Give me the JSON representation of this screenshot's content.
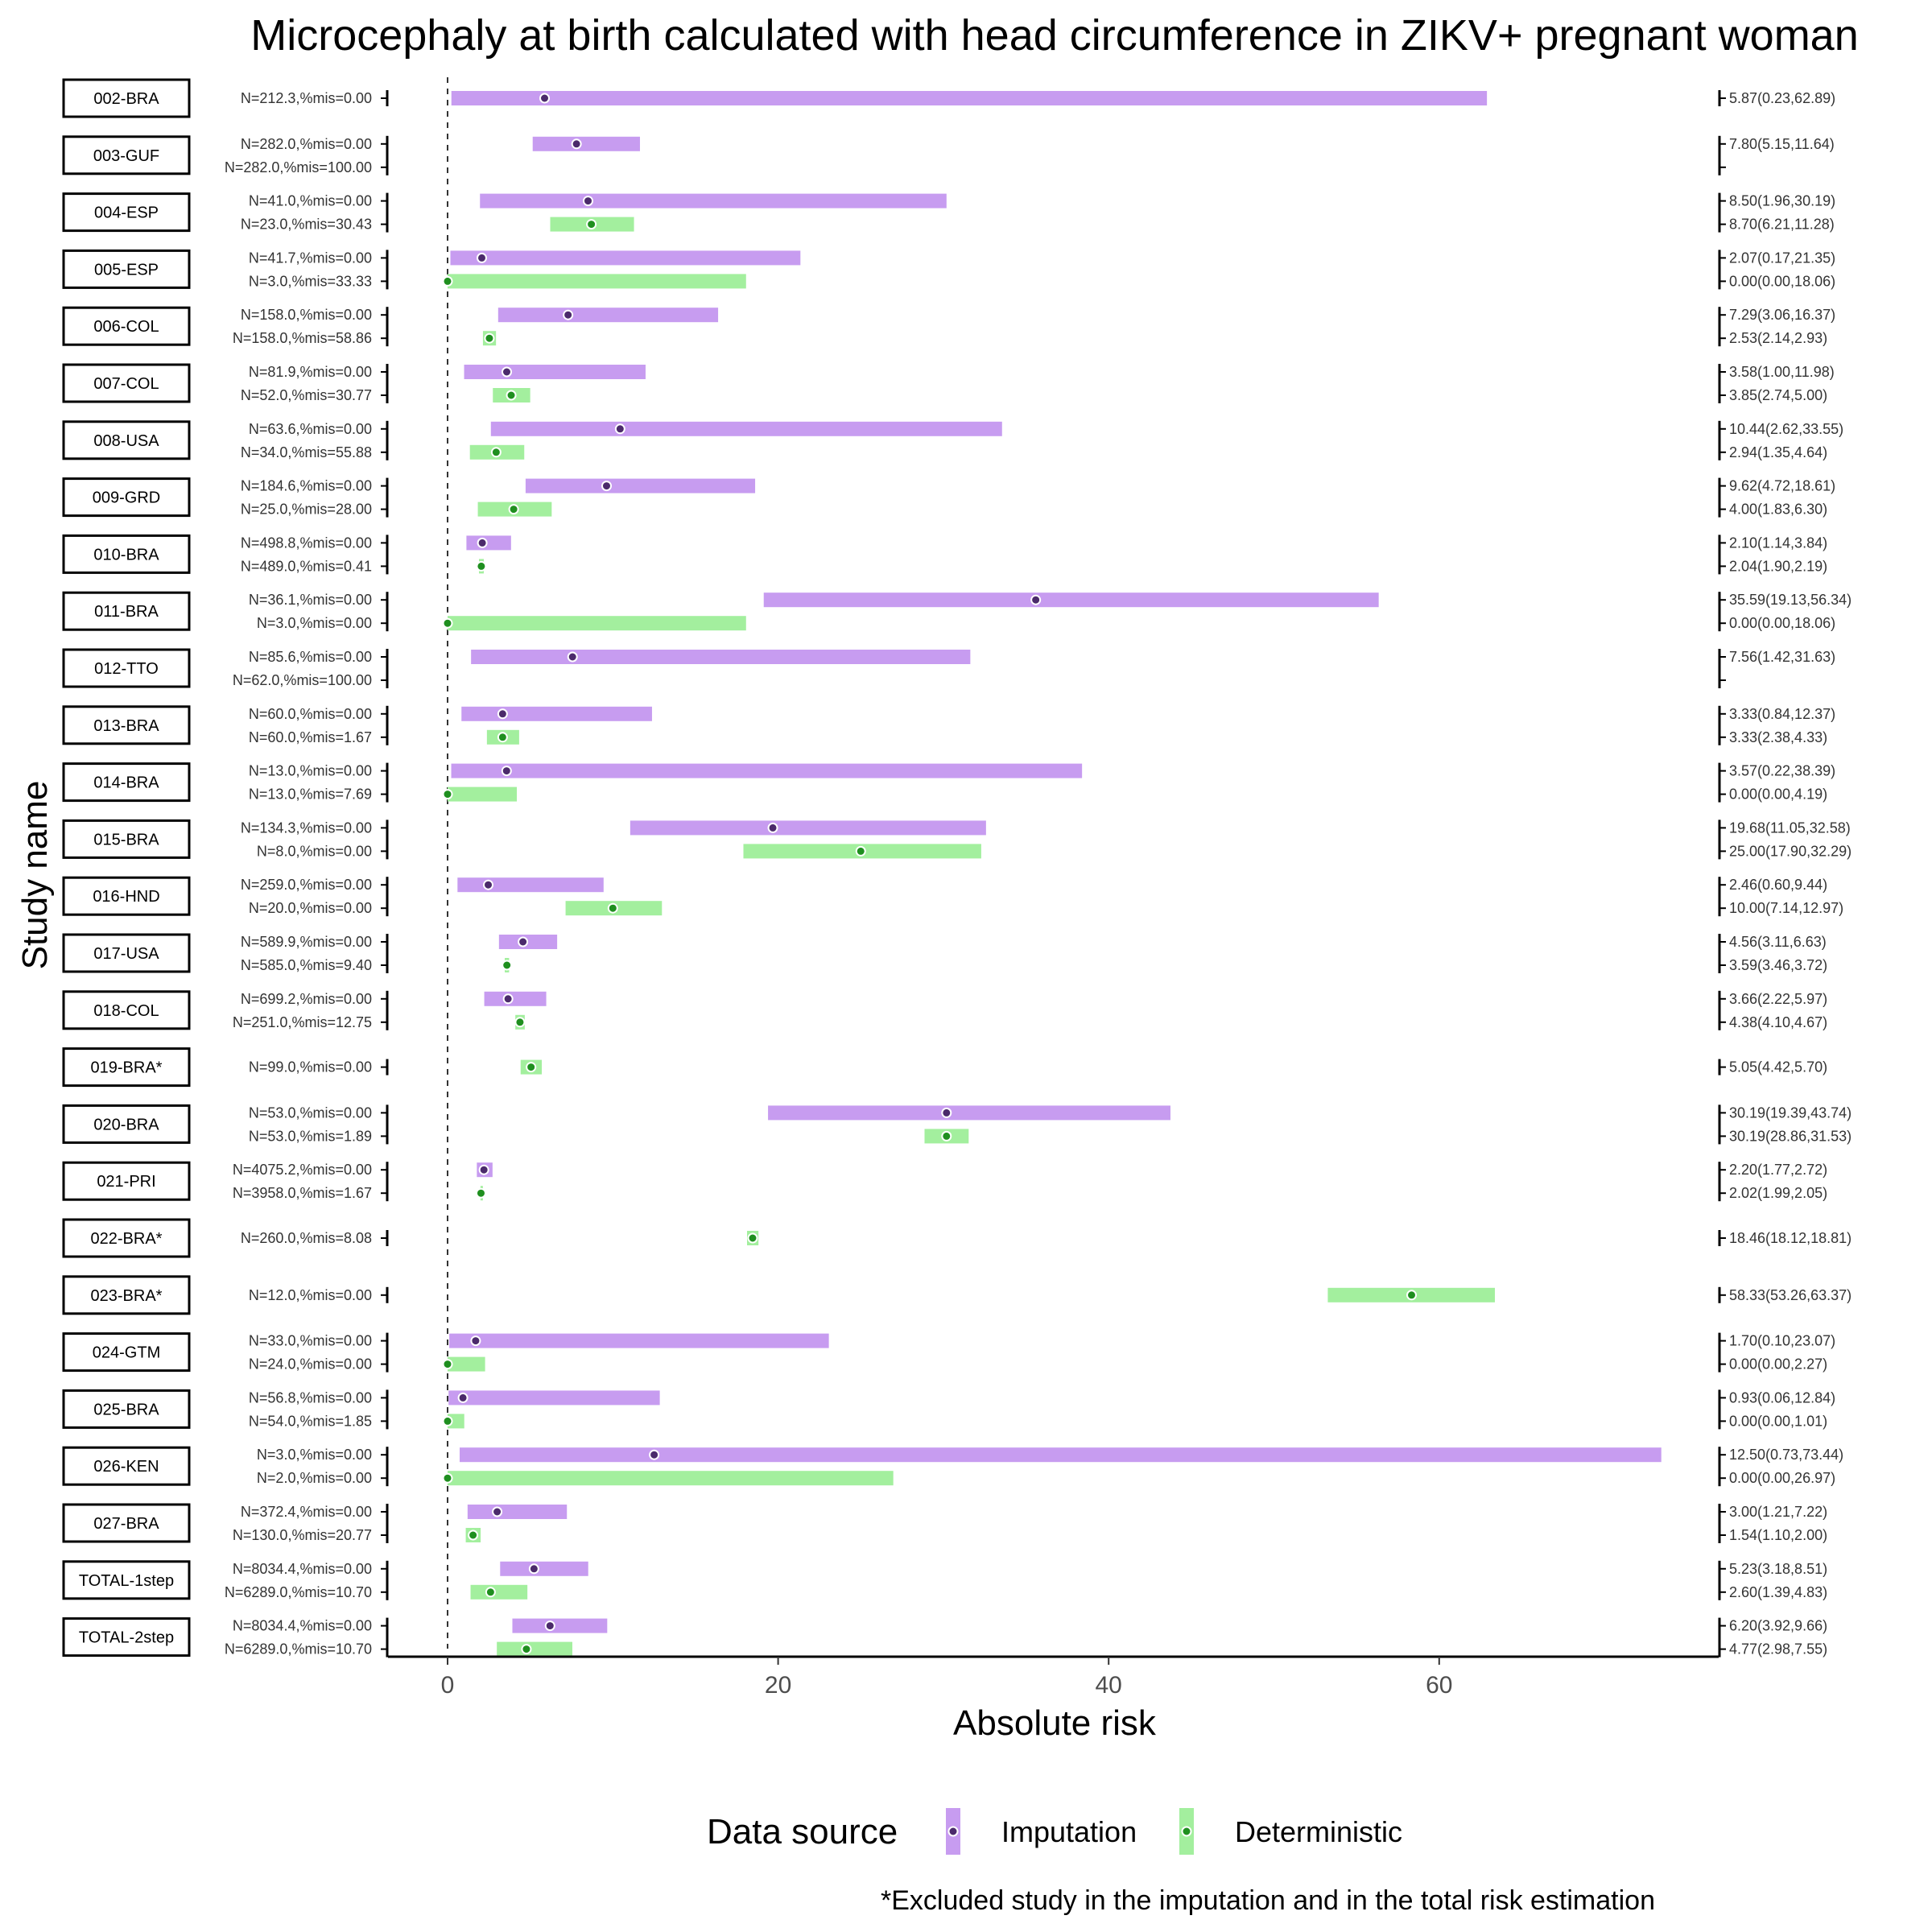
{
  "chart_data": {
    "type": "forest",
    "title": "Microcephaly at birth calculated with head circumference in ZIKV+ pregnant woman",
    "xlabel": "Absolute risk",
    "ylabel": "Study name",
    "xlim": [
      -3.5,
      77
    ],
    "x_ticks": [
      0,
      20,
      40,
      60
    ],
    "reference_line": 0,
    "legend": {
      "title": "Data source",
      "position": "bottom",
      "items": [
        {
          "name": "Imputation",
          "color": "#c79cf0",
          "dot": "#4b2a6b"
        },
        {
          "name": "Deterministic",
          "color": "#a3ef9e",
          "dot": "#1f8f1f"
        }
      ]
    },
    "footnote": "*Excluded study in the imputation and in the total risk estimation",
    "studies": [
      {
        "name": "002-BRA",
        "rows": [
          {
            "source": "Imputation",
            "n_label": "N=212.3,%mis=0.00",
            "est": 5.87,
            "lo": 0.23,
            "hi": 62.89,
            "ci_label": "5.87(0.23,62.89)"
          }
        ]
      },
      {
        "name": "003-GUF",
        "rows": [
          {
            "source": "Imputation",
            "n_label": "N=282.0,%mis=0.00",
            "est": 7.8,
            "lo": 5.15,
            "hi": 11.64,
            "ci_label": "7.80(5.15,11.64)"
          },
          {
            "source": "Deterministic",
            "n_label": "N=282.0,%mis=100.00",
            "est": null,
            "lo": null,
            "hi": null,
            "ci_label": ""
          }
        ]
      },
      {
        "name": "004-ESP",
        "rows": [
          {
            "source": "Imputation",
            "n_label": "N=41.0,%mis=0.00",
            "est": 8.5,
            "lo": 1.96,
            "hi": 30.19,
            "ci_label": "8.50(1.96,30.19)"
          },
          {
            "source": "Deterministic",
            "n_label": "N=23.0,%mis=30.43",
            "est": 8.7,
            "lo": 6.21,
            "hi": 11.28,
            "ci_label": "8.70(6.21,11.28)"
          }
        ]
      },
      {
        "name": "005-ESP",
        "rows": [
          {
            "source": "Imputation",
            "n_label": "N=41.7,%mis=0.00",
            "est": 2.07,
            "lo": 0.17,
            "hi": 21.35,
            "ci_label": "2.07(0.17,21.35)"
          },
          {
            "source": "Deterministic",
            "n_label": "N=3.0,%mis=33.33",
            "est": 0.0,
            "lo": 0.0,
            "hi": 18.06,
            "ci_label": "0.00(0.00,18.06)"
          }
        ]
      },
      {
        "name": "006-COL",
        "rows": [
          {
            "source": "Imputation",
            "n_label": "N=158.0,%mis=0.00",
            "est": 7.29,
            "lo": 3.06,
            "hi": 16.37,
            "ci_label": "7.29(3.06,16.37)"
          },
          {
            "source": "Deterministic",
            "n_label": "N=158.0,%mis=58.86",
            "est": 2.53,
            "lo": 2.14,
            "hi": 2.93,
            "ci_label": "2.53(2.14,2.93)"
          }
        ]
      },
      {
        "name": "007-COL",
        "rows": [
          {
            "source": "Imputation",
            "n_label": "N=81.9,%mis=0.00",
            "est": 3.58,
            "lo": 1.0,
            "hi": 11.98,
            "ci_label": "3.58(1.00,11.98)"
          },
          {
            "source": "Deterministic",
            "n_label": "N=52.0,%mis=30.77",
            "est": 3.85,
            "lo": 2.74,
            "hi": 5.0,
            "ci_label": "3.85(2.74,5.00)"
          }
        ]
      },
      {
        "name": "008-USA",
        "rows": [
          {
            "source": "Imputation",
            "n_label": "N=63.6,%mis=0.00",
            "est": 10.44,
            "lo": 2.62,
            "hi": 33.55,
            "ci_label": "10.44(2.62,33.55)"
          },
          {
            "source": "Deterministic",
            "n_label": "N=34.0,%mis=55.88",
            "est": 2.94,
            "lo": 1.35,
            "hi": 4.64,
            "ci_label": "2.94(1.35,4.64)"
          }
        ]
      },
      {
        "name": "009-GRD",
        "rows": [
          {
            "source": "Imputation",
            "n_label": "N=184.6,%mis=0.00",
            "est": 9.62,
            "lo": 4.72,
            "hi": 18.61,
            "ci_label": "9.62(4.72,18.61)"
          },
          {
            "source": "Deterministic",
            "n_label": "N=25.0,%mis=28.00",
            "est": 4.0,
            "lo": 1.83,
            "hi": 6.3,
            "ci_label": "4.00(1.83,6.30)"
          }
        ]
      },
      {
        "name": "010-BRA",
        "rows": [
          {
            "source": "Imputation",
            "n_label": "N=498.8,%mis=0.00",
            "est": 2.1,
            "lo": 1.14,
            "hi": 3.84,
            "ci_label": "2.10(1.14,3.84)"
          },
          {
            "source": "Deterministic",
            "n_label": "N=489.0,%mis=0.41",
            "est": 2.04,
            "lo": 1.9,
            "hi": 2.19,
            "ci_label": "2.04(1.90,2.19)"
          }
        ]
      },
      {
        "name": "011-BRA",
        "rows": [
          {
            "source": "Imputation",
            "n_label": "N=36.1,%mis=0.00",
            "est": 35.59,
            "lo": 19.13,
            "hi": 56.34,
            "ci_label": "35.59(19.13,56.34)"
          },
          {
            "source": "Deterministic",
            "n_label": "N=3.0,%mis=0.00",
            "est": 0.0,
            "lo": 0.0,
            "hi": 18.06,
            "ci_label": "0.00(0.00,18.06)"
          }
        ]
      },
      {
        "name": "012-TTO",
        "rows": [
          {
            "source": "Imputation",
            "n_label": "N=85.6,%mis=0.00",
            "est": 7.56,
            "lo": 1.42,
            "hi": 31.63,
            "ci_label": "7.56(1.42,31.63)"
          },
          {
            "source": "Deterministic",
            "n_label": "N=62.0,%mis=100.00",
            "est": null,
            "lo": null,
            "hi": null,
            "ci_label": ""
          }
        ]
      },
      {
        "name": "013-BRA",
        "rows": [
          {
            "source": "Imputation",
            "n_label": "N=60.0,%mis=0.00",
            "est": 3.33,
            "lo": 0.84,
            "hi": 12.37,
            "ci_label": "3.33(0.84,12.37)"
          },
          {
            "source": "Deterministic",
            "n_label": "N=60.0,%mis=1.67",
            "est": 3.33,
            "lo": 2.38,
            "hi": 4.33,
            "ci_label": "3.33(2.38,4.33)"
          }
        ]
      },
      {
        "name": "014-BRA",
        "rows": [
          {
            "source": "Imputation",
            "n_label": "N=13.0,%mis=0.00",
            "est": 3.57,
            "lo": 0.22,
            "hi": 38.39,
            "ci_label": "3.57(0.22,38.39)"
          },
          {
            "source": "Deterministic",
            "n_label": "N=13.0,%mis=7.69",
            "est": 0.0,
            "lo": 0.0,
            "hi": 4.19,
            "ci_label": "0.00(0.00,4.19)"
          }
        ]
      },
      {
        "name": "015-BRA",
        "rows": [
          {
            "source": "Imputation",
            "n_label": "N=134.3,%mis=0.00",
            "est": 19.68,
            "lo": 11.05,
            "hi": 32.58,
            "ci_label": "19.68(11.05,32.58)"
          },
          {
            "source": "Deterministic",
            "n_label": "N=8.0,%mis=0.00",
            "est": 25.0,
            "lo": 17.9,
            "hi": 32.29,
            "ci_label": "25.00(17.90,32.29)"
          }
        ]
      },
      {
        "name": "016-HND",
        "rows": [
          {
            "source": "Imputation",
            "n_label": "N=259.0,%mis=0.00",
            "est": 2.46,
            "lo": 0.6,
            "hi": 9.44,
            "ci_label": "2.46(0.60,9.44)"
          },
          {
            "source": "Deterministic",
            "n_label": "N=20.0,%mis=0.00",
            "est": 10.0,
            "lo": 7.14,
            "hi": 12.97,
            "ci_label": "10.00(7.14,12.97)"
          }
        ]
      },
      {
        "name": "017-USA",
        "rows": [
          {
            "source": "Imputation",
            "n_label": "N=589.9,%mis=0.00",
            "est": 4.56,
            "lo": 3.11,
            "hi": 6.63,
            "ci_label": "4.56(3.11,6.63)"
          },
          {
            "source": "Deterministic",
            "n_label": "N=585.0,%mis=9.40",
            "est": 3.59,
            "lo": 3.46,
            "hi": 3.72,
            "ci_label": "3.59(3.46,3.72)"
          }
        ]
      },
      {
        "name": "018-COL",
        "rows": [
          {
            "source": "Imputation",
            "n_label": "N=699.2,%mis=0.00",
            "est": 3.66,
            "lo": 2.22,
            "hi": 5.97,
            "ci_label": "3.66(2.22,5.97)"
          },
          {
            "source": "Deterministic",
            "n_label": "N=251.0,%mis=12.75",
            "est": 4.38,
            "lo": 4.1,
            "hi": 4.67,
            "ci_label": "4.38(4.10,4.67)"
          }
        ]
      },
      {
        "name": "019-BRA*",
        "rows": [
          {
            "source": "Deterministic",
            "n_label": "N=99.0,%mis=0.00",
            "est": 5.05,
            "lo": 4.42,
            "hi": 5.7,
            "ci_label": "5.05(4.42,5.70)"
          }
        ]
      },
      {
        "name": "020-BRA",
        "rows": [
          {
            "source": "Imputation",
            "n_label": "N=53.0,%mis=0.00",
            "est": 30.19,
            "lo": 19.39,
            "hi": 43.74,
            "ci_label": "30.19(19.39,43.74)"
          },
          {
            "source": "Deterministic",
            "n_label": "N=53.0,%mis=1.89",
            "est": 30.19,
            "lo": 28.86,
            "hi": 31.53,
            "ci_label": "30.19(28.86,31.53)"
          }
        ]
      },
      {
        "name": "021-PRI",
        "rows": [
          {
            "source": "Imputation",
            "n_label": "N=4075.2,%mis=0.00",
            "est": 2.2,
            "lo": 1.77,
            "hi": 2.72,
            "ci_label": "2.20(1.77,2.72)"
          },
          {
            "source": "Deterministic",
            "n_label": "N=3958.0,%mis=1.67",
            "est": 2.02,
            "lo": 1.99,
            "hi": 2.05,
            "ci_label": "2.02(1.99,2.05)"
          }
        ]
      },
      {
        "name": "022-BRA*",
        "rows": [
          {
            "source": "Deterministic",
            "n_label": "N=260.0,%mis=8.08",
            "est": 18.46,
            "lo": 18.12,
            "hi": 18.81,
            "ci_label": "18.46(18.12,18.81)"
          }
        ]
      },
      {
        "name": "023-BRA*",
        "rows": [
          {
            "source": "Deterministic",
            "n_label": "N=12.0,%mis=0.00",
            "est": 58.33,
            "lo": 53.26,
            "hi": 63.37,
            "ci_label": "58.33(53.26,63.37)"
          }
        ]
      },
      {
        "name": "024-GTM",
        "rows": [
          {
            "source": "Imputation",
            "n_label": "N=33.0,%mis=0.00",
            "est": 1.7,
            "lo": 0.1,
            "hi": 23.07,
            "ci_label": "1.70(0.10,23.07)"
          },
          {
            "source": "Deterministic",
            "n_label": "N=24.0,%mis=0.00",
            "est": 0.0,
            "lo": 0.0,
            "hi": 2.27,
            "ci_label": "0.00(0.00,2.27)"
          }
        ]
      },
      {
        "name": "025-BRA",
        "rows": [
          {
            "source": "Imputation",
            "n_label": "N=56.8,%mis=0.00",
            "est": 0.93,
            "lo": 0.06,
            "hi": 12.84,
            "ci_label": "0.93(0.06,12.84)"
          },
          {
            "source": "Deterministic",
            "n_label": "N=54.0,%mis=1.85",
            "est": 0.0,
            "lo": 0.0,
            "hi": 1.01,
            "ci_label": "0.00(0.00,1.01)"
          }
        ]
      },
      {
        "name": "026-KEN",
        "rows": [
          {
            "source": "Imputation",
            "n_label": "N=3.0,%mis=0.00",
            "est": 12.5,
            "lo": 0.73,
            "hi": 73.44,
            "ci_label": "12.50(0.73,73.44)"
          },
          {
            "source": "Deterministic",
            "n_label": "N=2.0,%mis=0.00",
            "est": 0.0,
            "lo": 0.0,
            "hi": 26.97,
            "ci_label": "0.00(0.00,26.97)"
          }
        ]
      },
      {
        "name": "027-BRA",
        "rows": [
          {
            "source": "Imputation",
            "n_label": "N=372.4,%mis=0.00",
            "est": 3.0,
            "lo": 1.21,
            "hi": 7.22,
            "ci_label": "3.00(1.21,7.22)"
          },
          {
            "source": "Deterministic",
            "n_label": "N=130.0,%mis=20.77",
            "est": 1.54,
            "lo": 1.1,
            "hi": 2.0,
            "ci_label": "1.54(1.10,2.00)"
          }
        ]
      },
      {
        "name": "TOTAL-1step",
        "rows": [
          {
            "source": "Imputation",
            "n_label": "N=8034.4,%mis=0.00",
            "est": 5.23,
            "lo": 3.18,
            "hi": 8.51,
            "ci_label": "5.23(3.18,8.51)"
          },
          {
            "source": "Deterministic",
            "n_label": "N=6289.0,%mis=10.70",
            "est": 2.6,
            "lo": 1.39,
            "hi": 4.83,
            "ci_label": "2.60(1.39,4.83)"
          }
        ]
      },
      {
        "name": "TOTAL-2step",
        "rows": [
          {
            "source": "Imputation",
            "n_label": "N=8034.4,%mis=0.00",
            "est": 6.2,
            "lo": 3.92,
            "hi": 9.66,
            "ci_label": "6.20(3.92,9.66)"
          },
          {
            "source": "Deterministic",
            "n_label": "N=6289.0,%mis=10.70",
            "est": 4.77,
            "lo": 2.98,
            "hi": 7.55,
            "ci_label": "4.77(2.98,7.55)"
          }
        ]
      }
    ]
  }
}
